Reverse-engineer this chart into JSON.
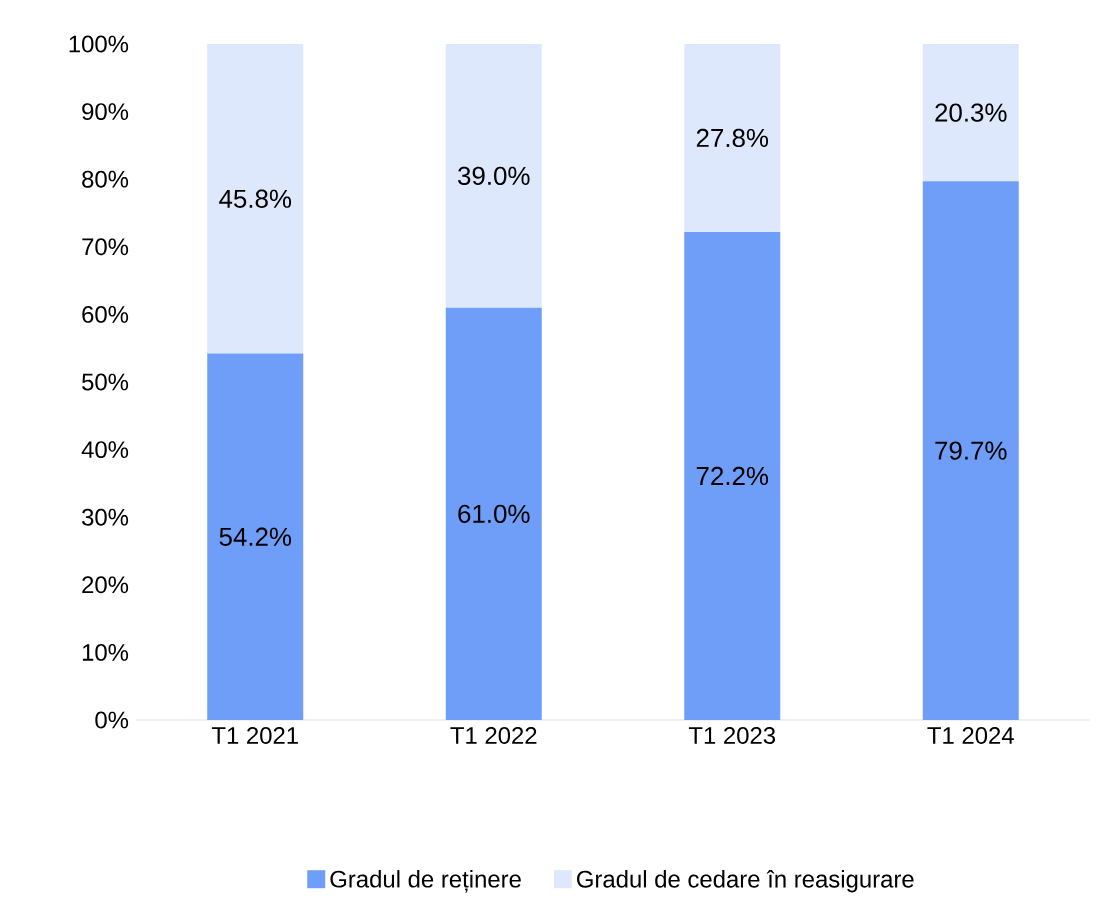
{
  "chart_data": {
    "type": "bar",
    "stacked": true,
    "categories": [
      "T1 2021",
      "T1 2022",
      "T1 2023",
      "T1 2024"
    ],
    "series": [
      {
        "name": "Gradul de reținere",
        "color": "#6f9ef8",
        "values": [
          54.2,
          61.0,
          72.2,
          79.7
        ],
        "value_labels": [
          "54.2%",
          "61.0%",
          "72.2%",
          "79.7%"
        ]
      },
      {
        "name": "Gradul de cedare în reasigurare",
        "color": "#dde8fc",
        "values": [
          45.8,
          39.0,
          27.8,
          20.3
        ],
        "value_labels": [
          "45.8%",
          "39.0%",
          "27.8%",
          "20.3%"
        ]
      }
    ],
    "ylim": [
      0,
      100
    ],
    "yticks": [
      {
        "value": 0,
        "label": "0%"
      },
      {
        "value": 10,
        "label": "10%"
      },
      {
        "value": 20,
        "label": "20%"
      },
      {
        "value": 30,
        "label": "30%"
      },
      {
        "value": 40,
        "label": "40%"
      },
      {
        "value": 50,
        "label": "50%"
      },
      {
        "value": 60,
        "label": "60%"
      },
      {
        "value": 70,
        "label": "70%"
      },
      {
        "value": 80,
        "label": "80%"
      },
      {
        "value": 90,
        "label": "90%"
      },
      {
        "value": 100,
        "label": "100%"
      }
    ],
    "grid": false,
    "legend": "bottom"
  }
}
